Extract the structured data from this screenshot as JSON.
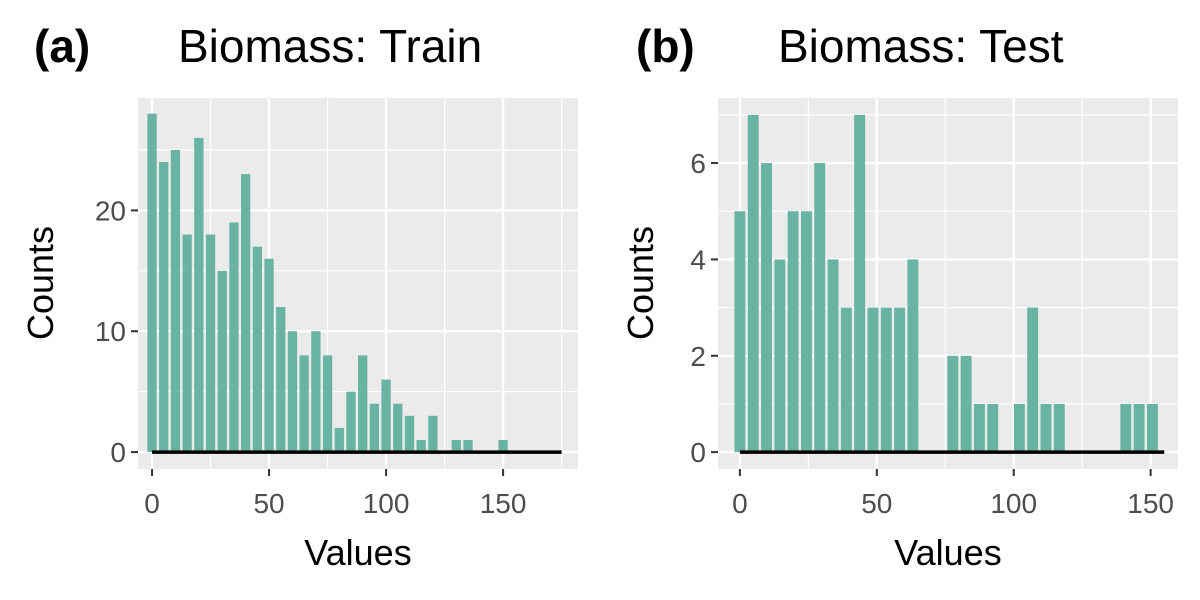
{
  "colors": {
    "bar": "#69b3a2",
    "panel_background": "#ebebeb",
    "grid": "#ffffff",
    "tick_text": "#4d4d4d",
    "baseline": "#000000"
  },
  "chart_data": [
    {
      "type": "bar",
      "tag": "(a)",
      "title": "Biomass: Train",
      "xlabel": "Values",
      "ylabel": "Counts",
      "grid": true,
      "xlim": [
        -6,
        182
      ],
      "ylim": [
        -1.4,
        29.3
      ],
      "x_ticks": [
        0,
        50,
        100,
        150
      ],
      "x_tick_labels": [
        "0",
        "50",
        "100",
        "150"
      ],
      "y_ticks": [
        0,
        10,
        20
      ],
      "y_tick_labels": [
        "0",
        "10",
        "20"
      ],
      "bin_width": 5,
      "bins": [
        0,
        5,
        10,
        15,
        20,
        25,
        30,
        35,
        40,
        45,
        50,
        55,
        60,
        65,
        70,
        75,
        80,
        85,
        90,
        95,
        100,
        105,
        110,
        115,
        120,
        125,
        130,
        135,
        140,
        145,
        150,
        155,
        160,
        165,
        170,
        175
      ],
      "values": [
        28,
        24,
        25,
        18,
        26,
        18,
        15,
        19,
        23,
        17,
        16,
        12,
        10,
        8,
        10,
        8,
        2,
        5,
        8,
        4,
        6,
        4,
        3,
        1,
        3,
        0,
        1,
        1,
        0,
        0,
        1,
        0,
        0,
        0,
        0,
        0
      ],
      "baseline_range": [
        0,
        175
      ]
    },
    {
      "type": "bar",
      "tag": "(b)",
      "title": "Biomass: Test",
      "xlabel": "Values",
      "ylabel": "Counts",
      "grid": true,
      "xlim": [
        -8,
        160
      ],
      "ylim": [
        -0.35,
        7.35
      ],
      "x_ticks": [
        0,
        50,
        100,
        150
      ],
      "x_tick_labels": [
        "0",
        "50",
        "100",
        "150"
      ],
      "y_ticks": [
        0,
        2,
        4,
        6
      ],
      "y_tick_labels": [
        "0",
        "2",
        "4",
        "6"
      ],
      "bin_width": 4.86,
      "bins": [
        0,
        4.86,
        9.72,
        14.58,
        19.44,
        24.3,
        29.16,
        34.02,
        38.88,
        43.74,
        48.6,
        53.46,
        58.32,
        63.18,
        68.04,
        72.9,
        77.76,
        82.62,
        87.48,
        92.34,
        97.2,
        102.06,
        106.92,
        111.78,
        116.64,
        121.5,
        126.36,
        131.22,
        136.08,
        140.94,
        145.8,
        150.66
      ],
      "values": [
        5,
        7,
        6,
        4,
        5,
        5,
        6,
        4,
        3,
        7,
        3,
        3,
        3,
        4,
        0,
        0,
        2,
        2,
        1,
        1,
        0,
        1,
        3,
        1,
        1,
        0,
        0,
        0,
        0,
        1,
        1,
        1
      ],
      "baseline_range": [
        0,
        155
      ]
    }
  ]
}
